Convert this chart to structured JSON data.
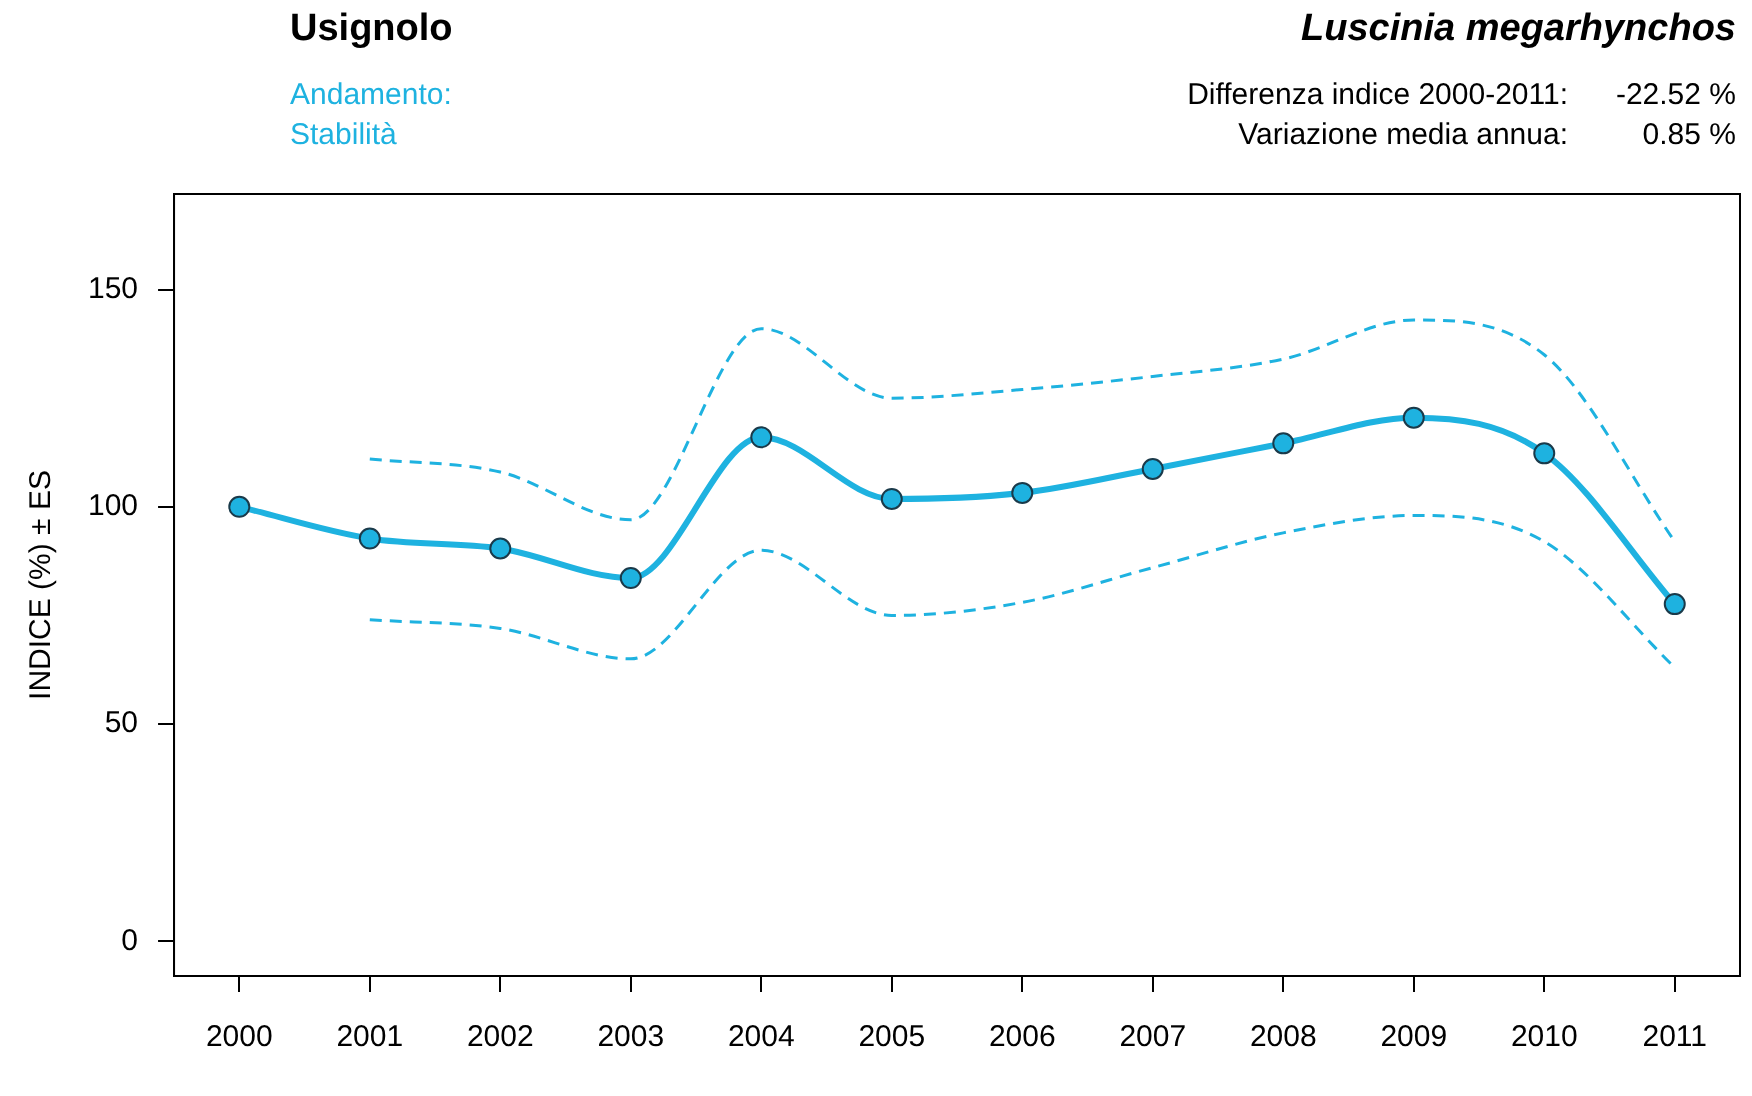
{
  "chart_data": {
    "type": "line",
    "title": "Usignolo",
    "subtitle": "Luscinia megarhynchos",
    "ylabel": "INDICE (%) ± ES",
    "annotations": [
      "Andamento:",
      "Stabilità",
      "Differenza indice 2000-2011:",
      "-22.52 %",
      "Variazione media annua:",
      "0.85 %"
    ],
    "categories": [
      "2000",
      "2001",
      "2002",
      "2003",
      "2004",
      "2005",
      "2006",
      "2007",
      "2008",
      "2009",
      "2010",
      "2011"
    ],
    "series": [
      {
        "color": "#1eb2e0",
        "values": [
          100,
          92.7,
          90.4,
          83.6,
          116,
          101.8,
          103.2,
          108.7,
          114.6,
          120.5,
          112.3,
          77.6
        ]
      },
      {
        "color": "#1eb2e0",
        "line_style": "dashed",
        "marker": "none",
        "values": [
          null,
          74,
          72,
          65,
          90,
          75,
          78,
          86,
          94,
          98,
          92,
          63
        ]
      },
      {
        "color": "#1eb2e0",
        "line_style": "dashed",
        "marker": "none",
        "values": [
          null,
          111,
          108,
          97,
          141,
          125,
          127,
          130,
          134,
          143,
          135,
          92
        ]
      }
    ],
    "ylim": [
      -8,
      172
    ],
    "yticks": [
      0,
      50,
      100,
      150
    ],
    "grid": false,
    "legend": false,
    "marker": "circle",
    "line_style": "solid"
  }
}
